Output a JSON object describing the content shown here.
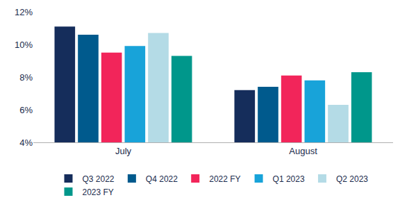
{
  "chart_data": {
    "type": "bar",
    "categories": [
      "July",
      "August"
    ],
    "series": [
      {
        "name": "Q3 2022",
        "color": "#152d5b",
        "values": [
          11.1,
          7.2
        ]
      },
      {
        "name": "Q4 2022",
        "color": "#005a8d",
        "values": [
          10.6,
          7.4
        ]
      },
      {
        "name": "2022 FY",
        "color": "#f2255a",
        "values": [
          9.5,
          8.1
        ]
      },
      {
        "name": "Q1 2023",
        "color": "#18a3d9",
        "values": [
          9.9,
          7.8
        ]
      },
      {
        "name": "Q2 2023",
        "color": "#b4dbe6",
        "values": [
          10.7,
          6.3
        ]
      },
      {
        "name": "2023 FY",
        "color": "#00978b",
        "values": [
          9.3,
          8.3
        ]
      }
    ],
    "ylim": [
      4,
      12
    ],
    "yticks": [
      {
        "value": 4,
        "label": "4%"
      },
      {
        "value": 6,
        "label": "6%"
      },
      {
        "value": 8,
        "label": "8%"
      },
      {
        "value": 10,
        "label": "10%"
      },
      {
        "value": 12,
        "label": "12%"
      }
    ],
    "grid": false,
    "legend": "bottom"
  }
}
